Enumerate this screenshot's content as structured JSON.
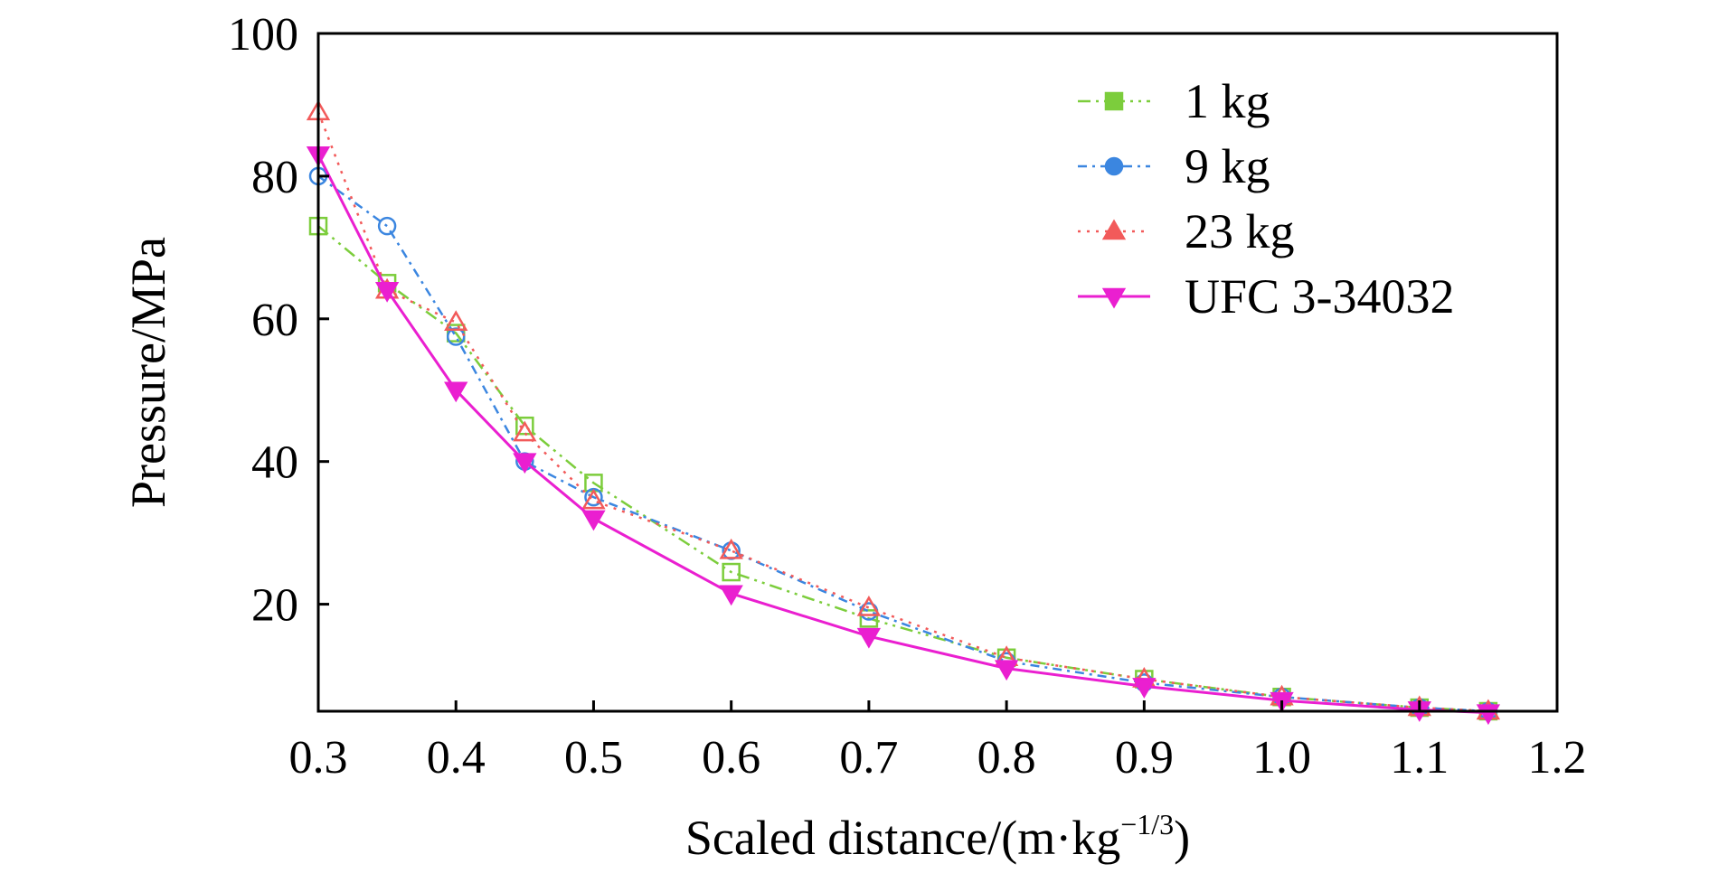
{
  "chart_data": {
    "type": "line",
    "xlabel_main": "Scaled distance/(m·kg",
    "xlabel_sup": "−1/3",
    "xlabel_tail": ")",
    "ylabel": "Pressure/MPa",
    "xlim": [
      0.3,
      1.2
    ],
    "ylim": [
      5,
      100
    ],
    "x_ticks": [
      "0.3",
      "0.4",
      "0.5",
      "0.6",
      "0.7",
      "0.8",
      "0.9",
      "1.0",
      "1.1",
      "1.2"
    ],
    "y_ticks": [
      "20",
      "40",
      "60",
      "80",
      "100"
    ],
    "grid": false,
    "legend_position": "top-right",
    "series": [
      {
        "name": "1 kg",
        "color": "#7ccd3c",
        "dash": "14 6 3 6 3 6",
        "marker": "square",
        "x": [
          0.3,
          0.35,
          0.4,
          0.45,
          0.5,
          0.6,
          0.7,
          0.8,
          0.9,
          1.0,
          1.1,
          1.15
        ],
        "y": [
          73,
          65,
          58,
          45,
          37,
          24.5,
          18,
          12.5,
          9.5,
          7,
          5.5,
          5
        ]
      },
      {
        "name": "9 kg",
        "color": "#3b86e0",
        "dash": "10 6 3 6",
        "marker": "circle",
        "x": [
          0.3,
          0.35,
          0.4,
          0.45,
          0.5,
          0.6,
          0.7,
          0.8,
          0.9,
          1.0,
          1.1,
          1.15
        ],
        "y": [
          80,
          73,
          57.5,
          40,
          35,
          27.5,
          19,
          12,
          9,
          7,
          5.5,
          5
        ]
      },
      {
        "name": "23 kg",
        "color": "#f25a5a",
        "dash": "3 7",
        "marker": "triangle-up",
        "x": [
          0.3,
          0.35,
          0.4,
          0.45,
          0.5,
          0.6,
          0.7,
          0.8,
          0.9,
          1.0,
          1.1,
          1.15
        ],
        "y": [
          89,
          64,
          59.5,
          44,
          34.5,
          27.5,
          19.5,
          12.5,
          9.5,
          7,
          5.5,
          5
        ]
      },
      {
        "name": "UFC 3-34032",
        "color": "#ea1fd0",
        "dash": "",
        "marker": "triangle-down",
        "x": [
          0.3,
          0.35,
          0.4,
          0.45,
          0.5,
          0.6,
          0.7,
          0.8,
          0.9,
          1.0,
          1.1,
          1.15
        ],
        "y": [
          83,
          64,
          50,
          40,
          32,
          21.5,
          15.5,
          11,
          8.5,
          6.5,
          5.2,
          4.8
        ]
      }
    ]
  }
}
